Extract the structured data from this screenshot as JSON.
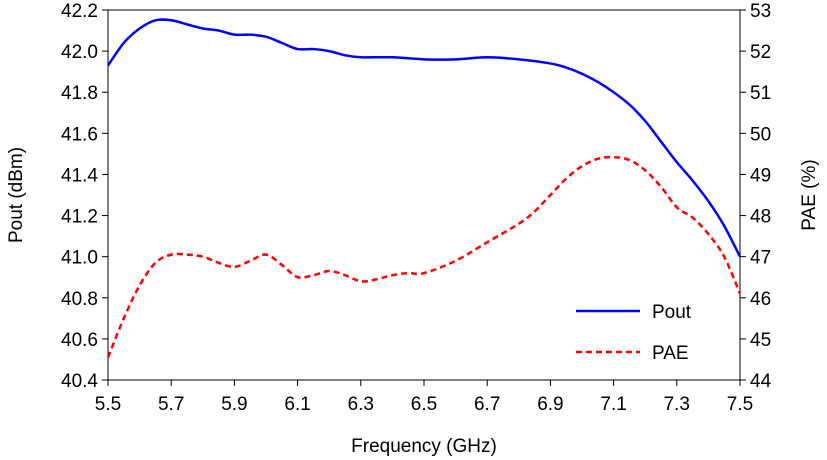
{
  "chart_data": {
    "type": "line",
    "xlabel": "Frequency (GHz)",
    "ylabel_left": "Pout (dBm)",
    "ylabel_right": "PAE (%)",
    "xlim": [
      5.5,
      7.5
    ],
    "ylim_left": [
      40.4,
      42.2
    ],
    "ylim_right": [
      44,
      53
    ],
    "x_ticks": [
      "5.5",
      "5.7",
      "5.9",
      "6.1",
      "6.3",
      "6.5",
      "6.7",
      "6.9",
      "7.1",
      "7.3",
      "7.5"
    ],
    "y_left_ticks": [
      "40.4",
      "40.6",
      "40.8",
      "41.0",
      "41.2",
      "41.4",
      "41.6",
      "41.8",
      "42.0",
      "42.2"
    ],
    "y_right_ticks": [
      "44",
      "45",
      "46",
      "47",
      "48",
      "49",
      "50",
      "51",
      "52",
      "53"
    ],
    "grid": false,
    "legend_position": "bottom-right",
    "series": [
      {
        "name": "Pout",
        "axis": "left",
        "color": "#0000ff",
        "style": "solid",
        "x": [
          5.5,
          5.55,
          5.6,
          5.65,
          5.7,
          5.75,
          5.8,
          5.85,
          5.9,
          5.95,
          6.0,
          6.05,
          6.1,
          6.15,
          6.2,
          6.25,
          6.3,
          6.4,
          6.5,
          6.6,
          6.7,
          6.8,
          6.9,
          6.95,
          7.0,
          7.05,
          7.1,
          7.15,
          7.2,
          7.25,
          7.3,
          7.35,
          7.4,
          7.45,
          7.5
        ],
        "values": [
          41.93,
          42.04,
          42.11,
          42.15,
          42.15,
          42.13,
          42.11,
          42.1,
          42.08,
          42.08,
          42.07,
          42.04,
          42.01,
          42.01,
          42.0,
          41.98,
          41.97,
          41.97,
          41.96,
          41.96,
          41.97,
          41.96,
          41.94,
          41.92,
          41.89,
          41.85,
          41.8,
          41.74,
          41.66,
          41.56,
          41.46,
          41.37,
          41.27,
          41.15,
          41.0
        ]
      },
      {
        "name": "PAE",
        "axis": "right",
        "color": "#ff0000",
        "style": "dashed",
        "x": [
          5.5,
          5.55,
          5.6,
          5.65,
          5.7,
          5.75,
          5.8,
          5.85,
          5.9,
          5.95,
          6.0,
          6.05,
          6.1,
          6.15,
          6.2,
          6.25,
          6.3,
          6.35,
          6.4,
          6.45,
          6.5,
          6.6,
          6.7,
          6.8,
          6.85,
          6.9,
          6.95,
          7.0,
          7.05,
          7.1,
          7.15,
          7.2,
          7.25,
          7.3,
          7.35,
          7.4,
          7.45,
          7.5
        ],
        "values": [
          44.55,
          45.5,
          46.3,
          46.85,
          47.05,
          47.05,
          47.0,
          46.85,
          46.75,
          46.9,
          47.05,
          46.8,
          46.5,
          46.55,
          46.65,
          46.55,
          46.4,
          46.45,
          46.55,
          46.6,
          46.6,
          46.9,
          47.35,
          47.8,
          48.1,
          48.5,
          48.9,
          49.2,
          49.38,
          49.42,
          49.35,
          49.1,
          48.7,
          48.2,
          47.95,
          47.55,
          47.0,
          46.1
        ]
      }
    ]
  }
}
